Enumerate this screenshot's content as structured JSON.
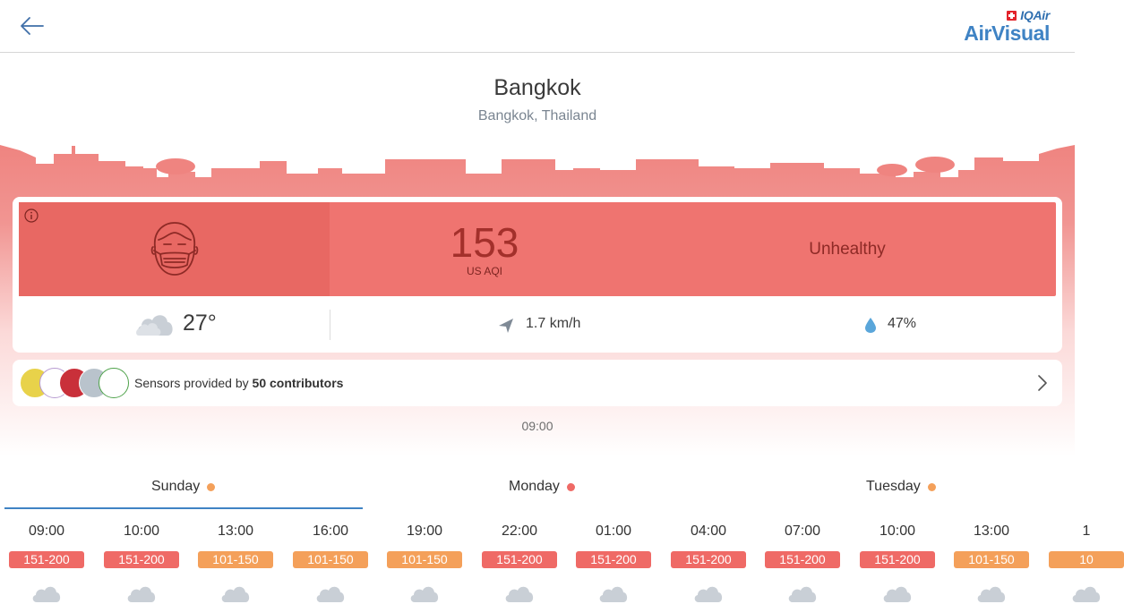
{
  "header": {
    "back_icon": "arrow-left-icon",
    "brand_top": "IQAir",
    "brand_name": "AirVisual"
  },
  "location": {
    "city": "Bangkok",
    "region": "Bangkok, Thailand"
  },
  "aqi": {
    "value": "153",
    "unit": "US AQI",
    "status": "Unhealthy",
    "color": "#ef7470",
    "face_panel_color": "#e86863"
  },
  "weather": {
    "temperature": "27°",
    "wind": "1.7 km/h",
    "humidity": "47%"
  },
  "contributors": {
    "prefix": "Sensors provided by ",
    "count_label": "50 contributors"
  },
  "current_time": "09:00",
  "days": [
    {
      "label": "Sunday",
      "dot_color": "#f4a05a"
    },
    {
      "label": "Monday",
      "dot_color": "#ef6a66"
    },
    {
      "label": "Tuesday",
      "dot_color": "#f4a05a"
    }
  ],
  "forecast": [
    {
      "time": "09:00",
      "range": "151-200",
      "color": "#ef6a66"
    },
    {
      "time": "10:00",
      "range": "151-200",
      "color": "#ef6a66"
    },
    {
      "time": "13:00",
      "range": "101-150",
      "color": "#f4a05a"
    },
    {
      "time": "16:00",
      "range": "101-150",
      "color": "#f4a05a"
    },
    {
      "time": "19:00",
      "range": "101-150",
      "color": "#f4a05a"
    },
    {
      "time": "22:00",
      "range": "151-200",
      "color": "#ef6a66"
    },
    {
      "time": "01:00",
      "range": "151-200",
      "color": "#ef6a66"
    },
    {
      "time": "04:00",
      "range": "151-200",
      "color": "#ef6a66"
    },
    {
      "time": "07:00",
      "range": "151-200",
      "color": "#ef6a66"
    },
    {
      "time": "10:00",
      "range": "151-200",
      "color": "#ef6a66"
    },
    {
      "time": "13:00",
      "range": "101-150",
      "color": "#f4a05a"
    },
    {
      "time": "1",
      "range": "10",
      "color": "#f4a05a"
    }
  ],
  "colors": {
    "accent": "#3f83c4",
    "skyline": "#ef8480"
  }
}
